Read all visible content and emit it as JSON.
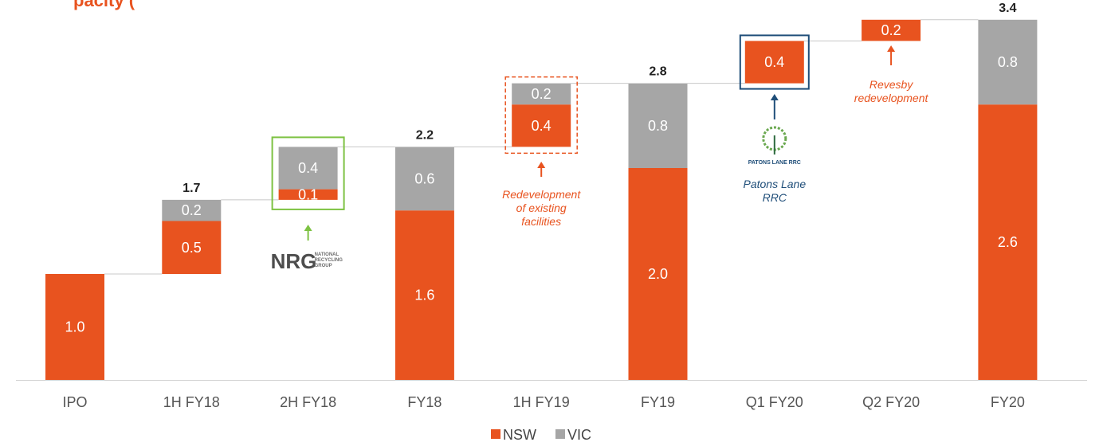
{
  "title_fragment": "pacity (",
  "colors": {
    "nsw": "#e8531f",
    "vic": "#a6a6a6",
    "nrg_green": "#7dc242",
    "patons_blue": "#1f4e79",
    "text_dark": "#222222"
  },
  "chart_data": {
    "type": "waterfall",
    "categories": [
      "IPO",
      "1H FY18",
      "2H FY18",
      "FY18",
      "1H FY19",
      "FY19",
      "Q1 FY20",
      "Q2 FY20",
      "FY20"
    ],
    "series": [
      {
        "name": "NSW",
        "values": [
          1.0,
          0.5,
          0.1,
          1.6,
          0.4,
          2.0,
          0.4,
          0.2,
          2.6
        ]
      },
      {
        "name": "VIC",
        "values": [
          null,
          0.2,
          0.4,
          0.6,
          0.2,
          0.8,
          null,
          null,
          0.8
        ]
      }
    ],
    "bar_kind": [
      "total",
      "increment",
      "increment",
      "total",
      "increment",
      "total",
      "increment",
      "increment",
      "total"
    ],
    "totals": {
      "1H FY18": "1.7",
      "FY18": "2.2",
      "FY19": "2.8",
      "FY20": "3.4"
    },
    "ylim": [
      0,
      3.4
    ],
    "legend": {
      "position": "bottom-center",
      "items": [
        "NSW",
        "VIC"
      ]
    },
    "grid": false
  },
  "annotations": [
    {
      "id": "nrg",
      "category": "2H FY18",
      "logo_text": "NRG",
      "logo_sub": [
        "NATIONAL",
        "RECYCLING",
        "GROUP"
      ],
      "color": "nrg_green"
    },
    {
      "id": "redev",
      "category": "1H FY19",
      "lines": [
        "Redevelopment",
        "of existing",
        "facilities"
      ],
      "color": "nsw"
    },
    {
      "id": "patons",
      "category": "Q1 FY20",
      "logo_text": "PATONS LANE RRC",
      "lines": [
        "Patons Lane",
        "RRC"
      ],
      "color": "patons_blue"
    },
    {
      "id": "revesby",
      "category": "Q2 FY20",
      "lines": [
        "Revesby",
        "redevelopment"
      ],
      "color": "nsw"
    }
  ]
}
